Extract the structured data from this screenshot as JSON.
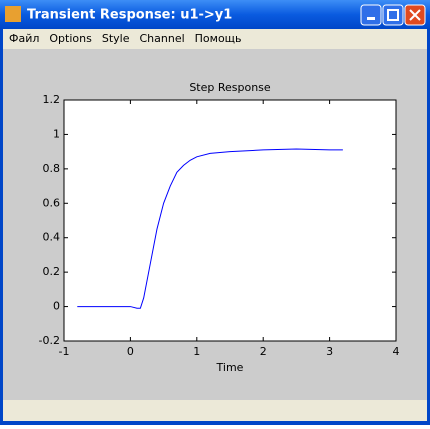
{
  "window": {
    "title": "Transient Response: u1->y1"
  },
  "menu": [
    "Файл",
    "Options",
    "Style",
    "Channel",
    "Помощь"
  ],
  "chart_data": {
    "type": "line",
    "title": "Step Response",
    "x_label": "Time",
    "x": [
      -0.8,
      0,
      0.1,
      0.15,
      0.2,
      0.3,
      0.4,
      0.5,
      0.6,
      0.7,
      0.8,
      0.9,
      1.0,
      1.2,
      1.5,
      2.0,
      2.5,
      3.0,
      3.2
    ],
    "values": [
      0,
      0,
      -0.01,
      -0.01,
      0.05,
      0.25,
      0.45,
      0.6,
      0.7,
      0.78,
      0.82,
      0.85,
      0.87,
      0.89,
      0.9,
      0.91,
      0.915,
      0.91,
      0.91
    ],
    "color": "#0000ff",
    "xlim": [
      -1,
      4
    ],
    "xticks": [
      -1,
      0,
      1,
      2,
      3,
      4
    ],
    "ylim": [
      -0.2,
      1.2
    ],
    "yticks": [
      -0.2,
      0,
      0.2,
      0.4,
      0.6,
      0.8,
      1,
      1.2
    ],
    "grid": false
  }
}
